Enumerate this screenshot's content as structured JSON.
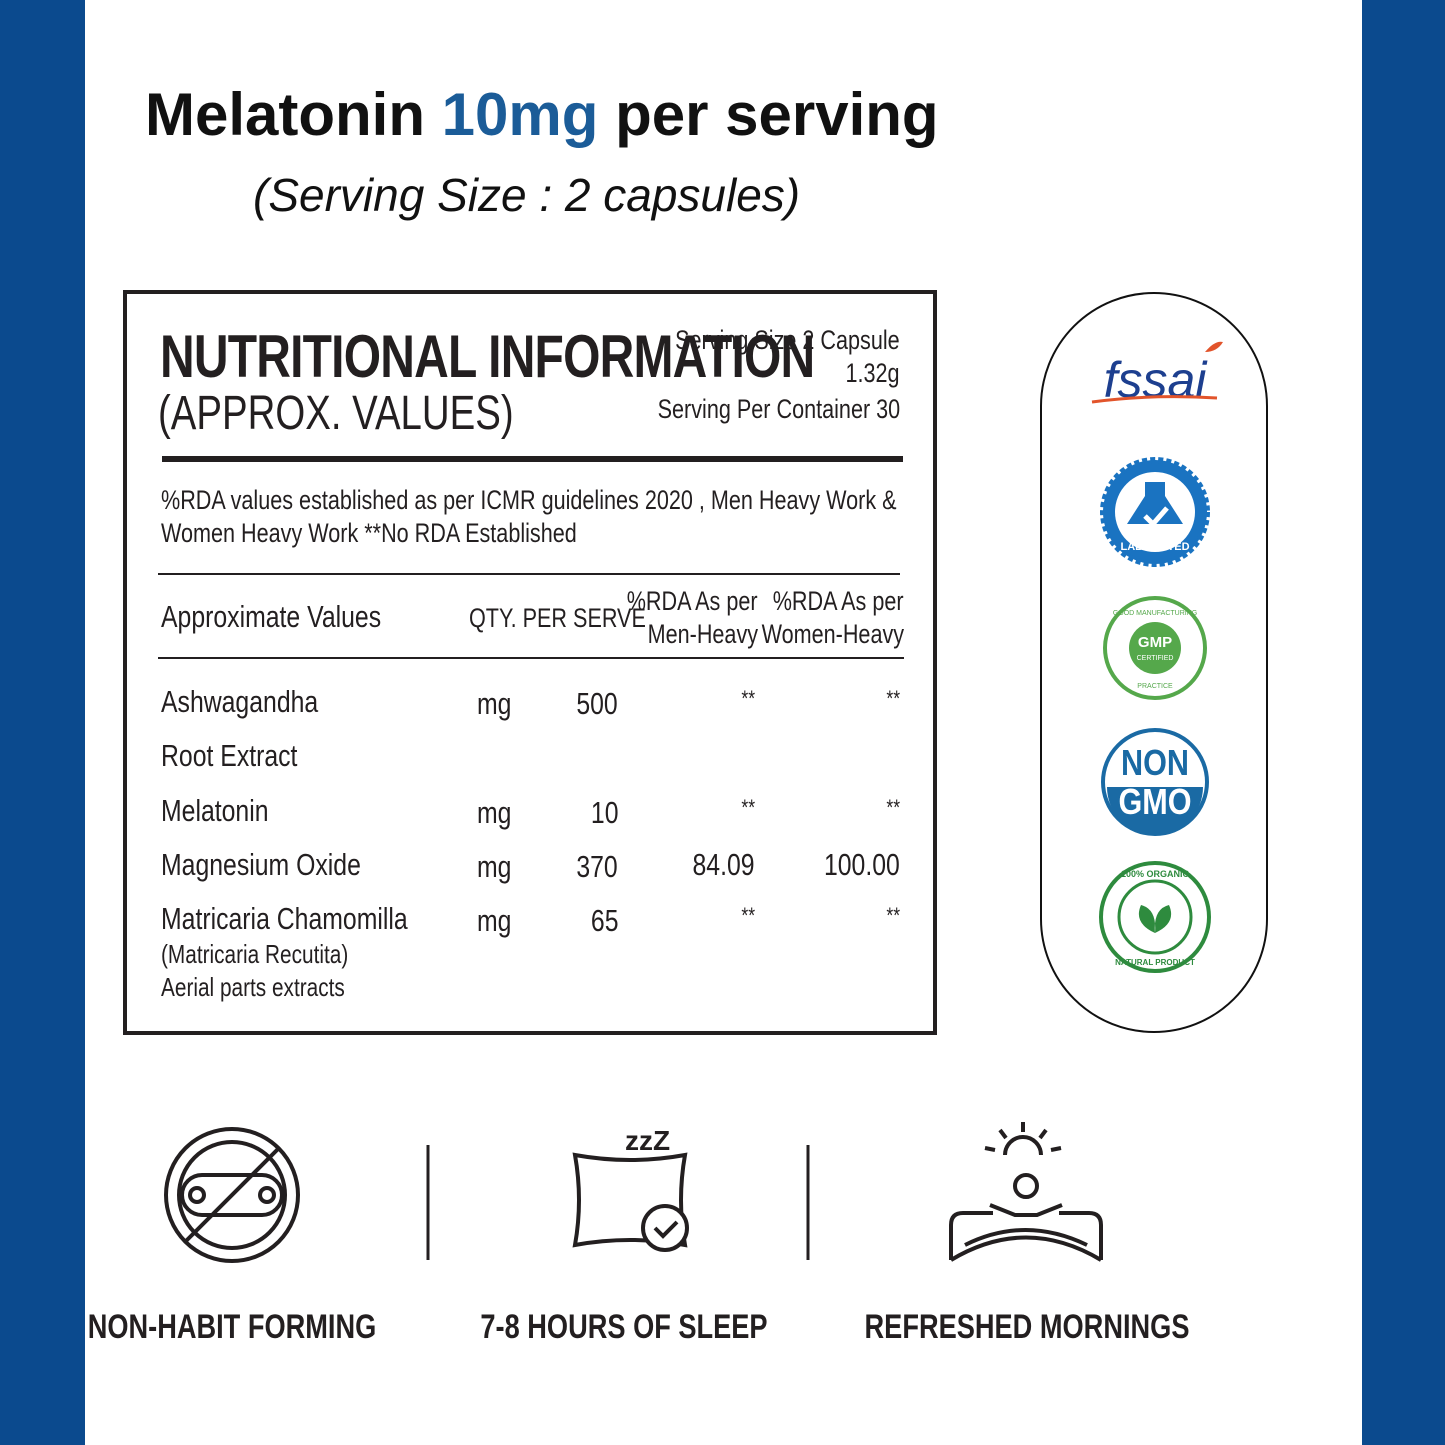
{
  "header": {
    "title_before": "Melatonin",
    "title_highlight": "10mg",
    "title_after": "per serving",
    "subtitle": "(Serving Size : 2 capsules)"
  },
  "panel": {
    "title": "NUTRITIONAL INFORMATION",
    "subtitle": "(APPROX. VALUES)",
    "serving_size": "Serving Size 2 Capsule",
    "serving_weight": "1.32g",
    "servings_per_container": "Serving Per Container 30",
    "note_line1": "%RDA values established as per ICMR guidelines 2020 , Men Heavy Work &",
    "note_line2": "Women Heavy Work **No RDA Established",
    "columns": {
      "name": "Approximate Values",
      "qty": "QTY. PER SERVE",
      "men_line1": "%RDA As per",
      "men_line2": "Men-Heavy",
      "women_line1": "%RDA As per",
      "women_line2": "Women-Heavy"
    },
    "rows": [
      {
        "name": "Ashwagandha",
        "name_line2": "Root Extract",
        "unit": "mg",
        "qty": "500",
        "men": "**",
        "women": "**"
      },
      {
        "name": "Melatonin",
        "unit": "mg",
        "qty": "10",
        "men": "**",
        "women": "**"
      },
      {
        "name": "Magnesium Oxide",
        "unit": "mg",
        "qty": "370",
        "men": "84.09",
        "women": "100.00"
      },
      {
        "name": "Matricaria Chamomilla",
        "name_line2": "(Matricaria Recutita)",
        "name_line3": "Aerial parts extracts",
        "unit": "mg",
        "qty": "65",
        "men": "**",
        "women": "**"
      }
    ]
  },
  "badges": {
    "fssai": "fssai",
    "lab": "LAB TESTED",
    "gmp": "GMP",
    "gmp_sub": "CERTIFIED",
    "gmp_ring_top": "GOOD MANUFACTURING",
    "gmp_ring_bottom": "PRACTICE",
    "non": "NON",
    "gmo": "GMO",
    "organic_top": "100% ORGANIC",
    "organic_bottom": "NATURAL PRODUCT"
  },
  "features": [
    {
      "label": "NON-HABIT FORMING"
    },
    {
      "label": "7-8 HOURS OF SLEEP",
      "icon_text": "zzZ"
    },
    {
      "label": "REFRESHED MORNINGS"
    }
  ]
}
